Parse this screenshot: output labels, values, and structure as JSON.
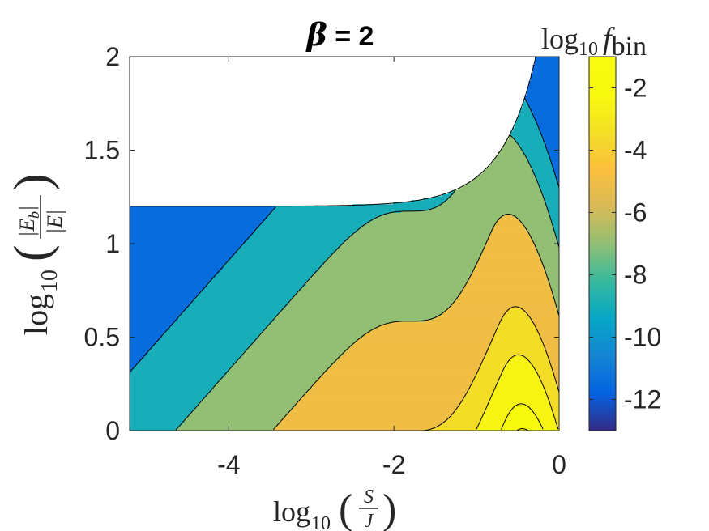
{
  "chart_data": {
    "type": "contourf",
    "title": {
      "symbol": "β",
      "text": " = 2"
    },
    "xlabel": {
      "fn": "log",
      "sub": "10",
      "num": "S",
      "den": "J"
    },
    "ylabel": {
      "fn": "log",
      "sub": "10",
      "num": "|E",
      "num_sub": "b",
      "num_tail": "|",
      "den": "|E|"
    },
    "colorbar_label": {
      "fn": "log",
      "sub": "10",
      "var": "f",
      "var_sub": "bin"
    },
    "xlim": [
      -5.2,
      0
    ],
    "ylim": [
      0,
      2
    ],
    "clim": [
      -13,
      -1
    ],
    "x_ticks": [
      -4,
      -2,
      0
    ],
    "x_tick_labels": [
      "-4",
      "-2",
      "0"
    ],
    "y_ticks": [
      0,
      0.5,
      1,
      1.5,
      2
    ],
    "y_tick_labels": [
      "0",
      "0.5",
      "1",
      "1.5",
      "2"
    ],
    "colorbar_ticks": [
      -12,
      -10,
      -8,
      -6,
      -4,
      -2
    ],
    "colorbar_tick_labels": [
      "-12",
      "-10",
      "-8",
      "-6",
      "-4",
      "-2"
    ],
    "contour_levels": [
      -10,
      -8,
      -6,
      -4,
      -3,
      -2,
      -1.5,
      -1
    ],
    "region_boundary": "log10(Eb/E) ≤ 1.2 for log10(S/J) < -2, rising steeply near 0",
    "colormap": "parula",
    "grid": false,
    "colorbar_position": "right"
  }
}
